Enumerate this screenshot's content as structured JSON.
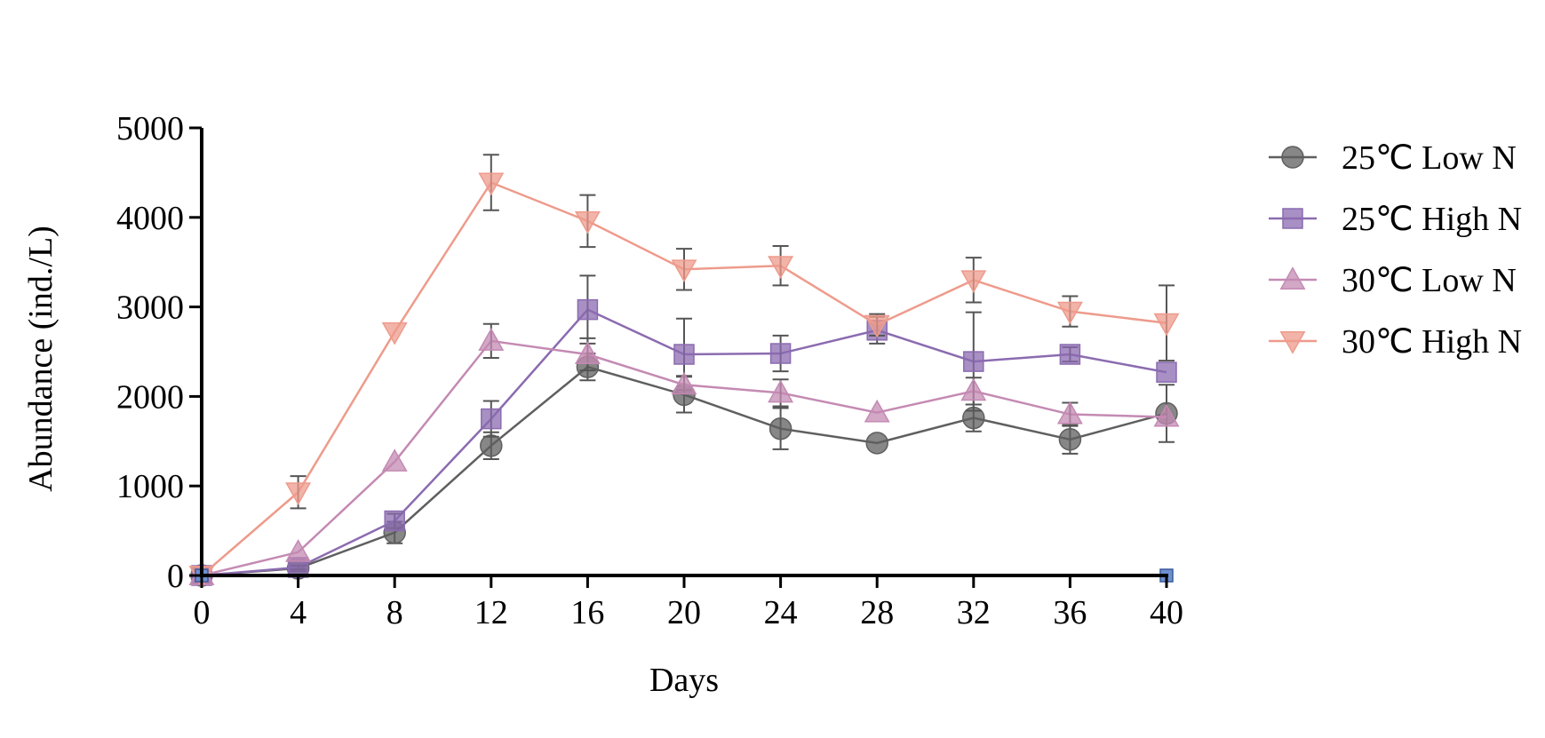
{
  "chart_data": {
    "type": "line",
    "title": "",
    "xlabel": "Days",
    "ylabel": "Abundance (ind./L)",
    "x": [
      0,
      4,
      8,
      12,
      16,
      20,
      24,
      28,
      32,
      36,
      40
    ],
    "xlim": [
      0,
      40
    ],
    "ylim": [
      0,
      5000
    ],
    "xticks": [
      "0",
      "4",
      "8",
      "12",
      "16",
      "20",
      "24",
      "28",
      "32",
      "36",
      "40"
    ],
    "yticks": [
      "0",
      "1000",
      "2000",
      "3000",
      "4000",
      "5000"
    ],
    "grid": false,
    "legend_position": "right",
    "series": [
      {
        "name": "25℃ Low N",
        "marker": "circle",
        "color": "#5f5f5f",
        "values": [
          0,
          80,
          480,
          1450,
          2330,
          2020,
          1640,
          1480,
          1760,
          1520,
          1810
        ],
        "errors": [
          0,
          30,
          120,
          150,
          150,
          200,
          230,
          0,
          150,
          160,
          320
        ]
      },
      {
        "name": "25℃ High N",
        "marker": "square",
        "color": "#8b6bb0",
        "values": [
          0,
          90,
          610,
          1750,
          2970,
          2470,
          2480,
          2740,
          2390,
          2470,
          2270
        ],
        "errors": [
          0,
          20,
          80,
          200,
          380,
          400,
          200,
          150,
          550,
          80,
          0
        ]
      },
      {
        "name": "30℃ Low N",
        "marker": "triangle-up",
        "color": "#c48ab3",
        "values": [
          0,
          260,
          1270,
          2620,
          2470,
          2130,
          2040,
          1820,
          2060,
          1800,
          1770
        ],
        "errors": [
          0,
          0,
          0,
          190,
          180,
          100,
          150,
          0,
          150,
          130,
          0
        ]
      },
      {
        "name": "30℃ High N",
        "marker": "triangle-down",
        "color": "#ee9b8c",
        "values": [
          0,
          930,
          2720,
          4390,
          3960,
          3420,
          3460,
          2800,
          3300,
          2950,
          2820
        ],
        "errors": [
          0,
          180,
          0,
          310,
          290,
          230,
          220,
          120,
          250,
          170,
          420
        ]
      }
    ],
    "annotations": [
      {
        "name": "blue-square-marker",
        "x": 0,
        "y": 0,
        "color": "#6f8fd0"
      },
      {
        "name": "blue-square-marker",
        "x": 40,
        "y": 0,
        "color": "#6f8fd0"
      }
    ]
  }
}
